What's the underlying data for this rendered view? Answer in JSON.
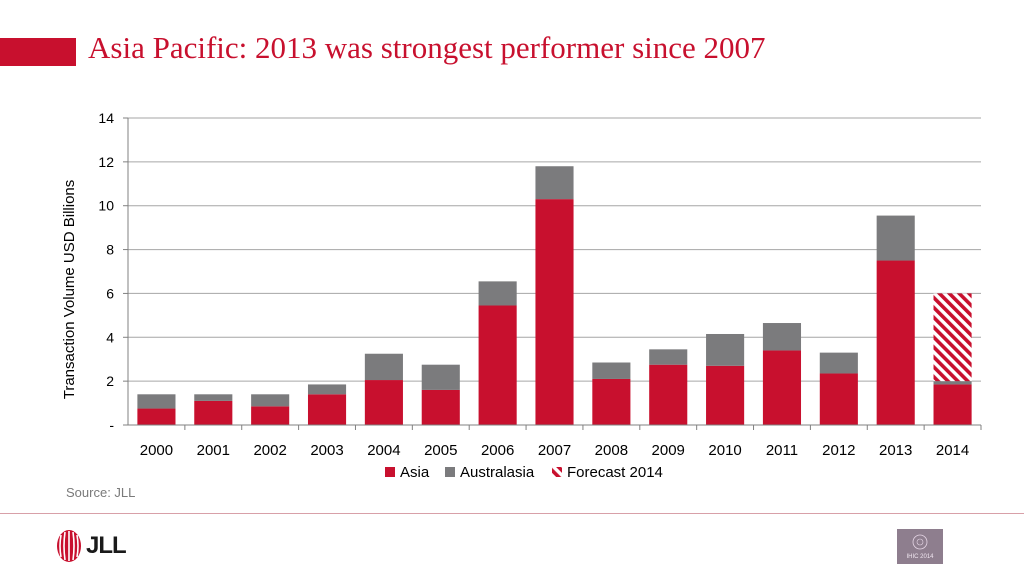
{
  "slide": {
    "title": "Asia Pacific: 2013 was strongest performer since 2007",
    "source": "Source: JLL",
    "logo_text": "JLL",
    "badge_text": "IHIC 2014"
  },
  "colors": {
    "brand_red": "#c8102e",
    "asia": "#c8102e",
    "australasia": "#7b7b7d",
    "forecast": "#c8102e"
  },
  "chart_data": {
    "type": "bar",
    "stacked": true,
    "categories": [
      "2000",
      "2001",
      "2002",
      "2003",
      "2004",
      "2005",
      "2006",
      "2007",
      "2008",
      "2009",
      "2010",
      "2011",
      "2012",
      "2013",
      "2014"
    ],
    "series": [
      {
        "name": "Asia",
        "values": [
          0.75,
          1.1,
          0.85,
          1.4,
          2.05,
          1.6,
          5.45,
          10.3,
          2.1,
          2.75,
          2.7,
          3.4,
          2.35,
          7.5,
          1.85
        ]
      },
      {
        "name": "Australasia",
        "values": [
          0.65,
          0.3,
          0.55,
          0.45,
          1.2,
          1.15,
          1.1,
          1.5,
          0.75,
          0.7,
          1.45,
          1.25,
          0.95,
          2.05,
          0.15
        ]
      },
      {
        "name": "Forecast 2014",
        "values": [
          0,
          0,
          0,
          0,
          0,
          0,
          0,
          0,
          0,
          0,
          0,
          0,
          0,
          0,
          4.0
        ]
      }
    ],
    "ylabel": "Transaction Volume USD Billions",
    "ylim": [
      0,
      14
    ],
    "yticks": [
      0,
      2,
      4,
      6,
      8,
      10,
      12,
      14
    ],
    "ytick_labels": [
      "-",
      "2",
      "4",
      "6",
      "8",
      "10",
      "12",
      "14"
    ],
    "grid": true,
    "legend_position": "bottom"
  }
}
